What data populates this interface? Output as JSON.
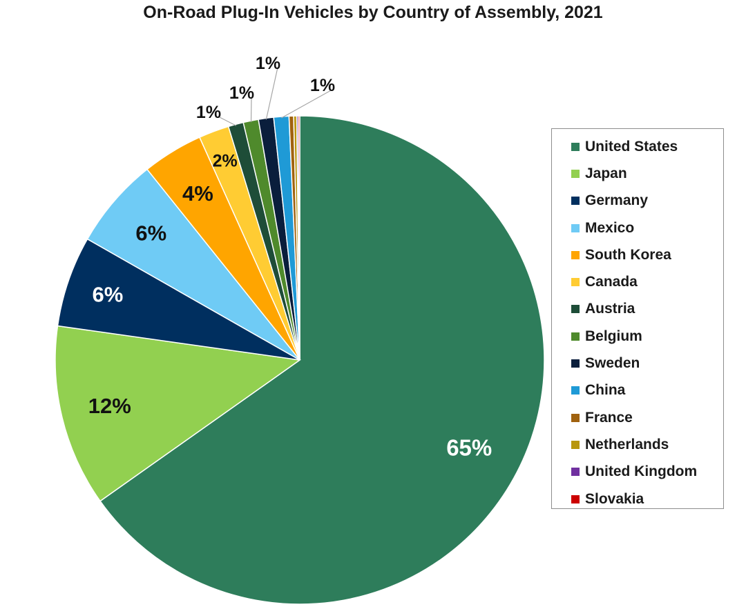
{
  "chart_data": {
    "type": "pie",
    "title": "On-Road Plug-In Vehicles by Country of Assembly, 2021",
    "legend_position": "right",
    "slices": [
      {
        "name": "United States",
        "value": 65,
        "label": "65%",
        "color": "#2e7d5b"
      },
      {
        "name": "Japan",
        "value": 12,
        "label": "12%",
        "color": "#92d050"
      },
      {
        "name": "Germany",
        "value": 6,
        "label": "6%",
        "color": "#002f5f"
      },
      {
        "name": "Mexico",
        "value": 6,
        "label": "6%",
        "color": "#6fcbf5"
      },
      {
        "name": "South Korea",
        "value": 4,
        "label": "4%",
        "color": "#ffa500"
      },
      {
        "name": "Canada",
        "value": 2,
        "label": "2%",
        "color": "#ffcc33"
      },
      {
        "name": "Austria",
        "value": 1,
        "label": "1%",
        "color": "#1e4d38"
      },
      {
        "name": "Belgium",
        "value": 1,
        "label": "1%",
        "color": "#4f8a2c"
      },
      {
        "name": "Sweden",
        "value": 1,
        "label": "1%",
        "color": "#0a1e3c"
      },
      {
        "name": "China",
        "value": 1,
        "label": "1%",
        "color": "#1f9ad6"
      },
      {
        "name": "France",
        "value": 0.3,
        "label": "",
        "color": "#a0620f"
      },
      {
        "name": "Netherlands",
        "value": 0.2,
        "label": "",
        "color": "#b8960c"
      },
      {
        "name": "United Kingdom",
        "value": 0.1,
        "label": "",
        "color": "#7030a0"
      },
      {
        "name": "Slovakia",
        "value": 0.1,
        "label": "",
        "color": "#cc0000"
      }
    ]
  }
}
